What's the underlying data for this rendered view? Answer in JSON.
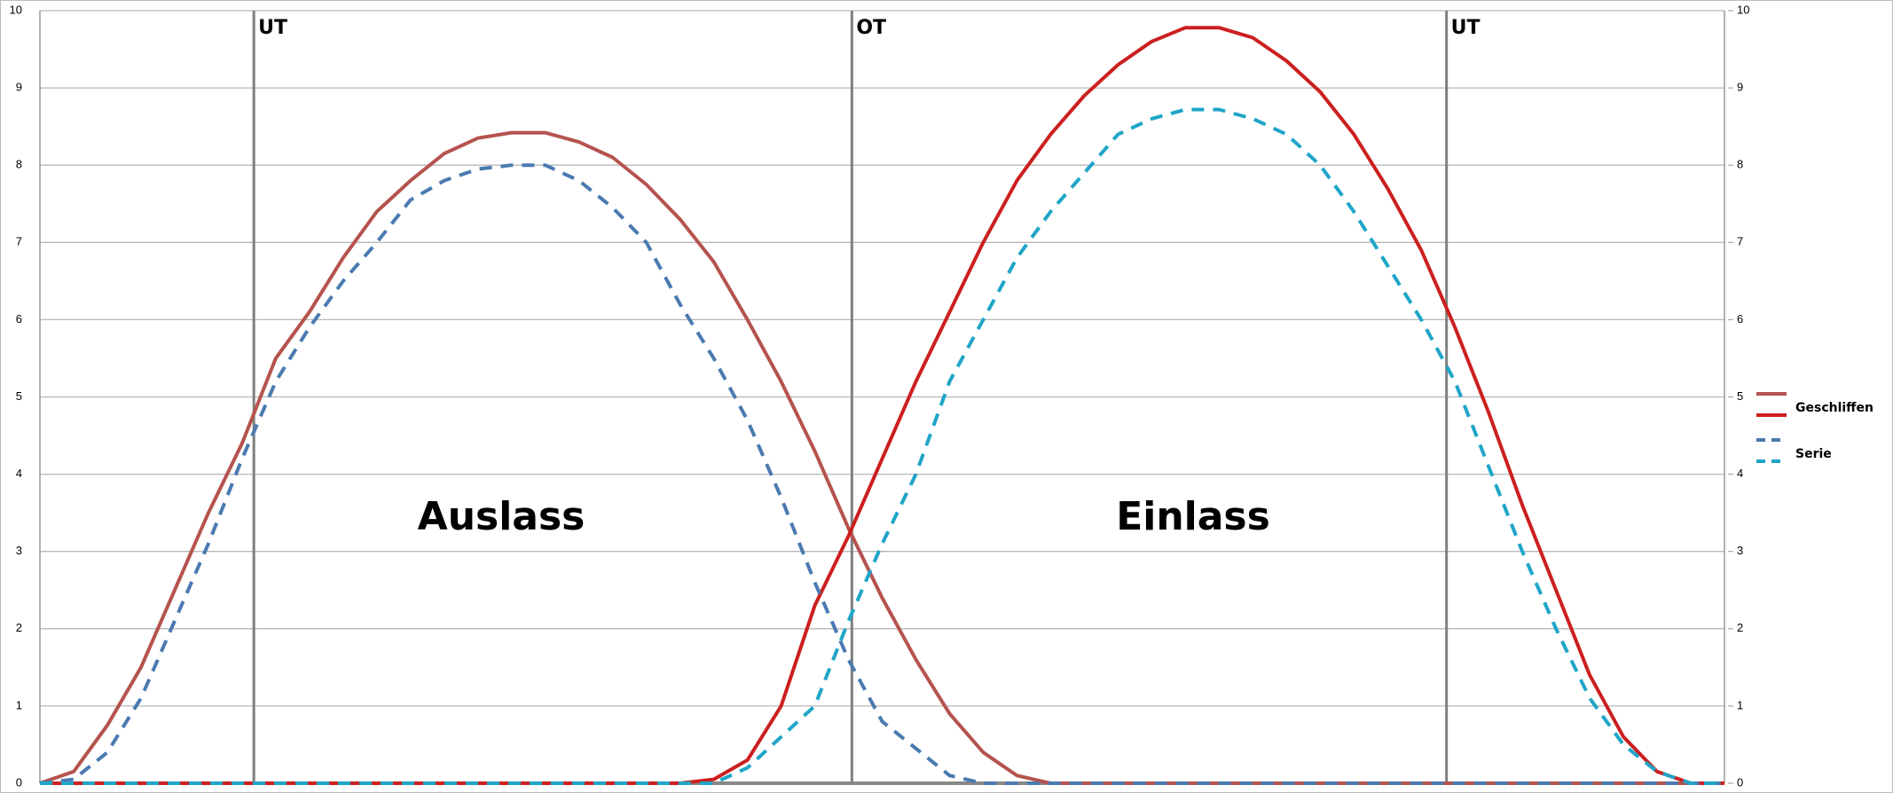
{
  "chart_data": {
    "type": "line",
    "xlim": [
      0,
      50
    ],
    "ylim": [
      0,
      10
    ],
    "yticks": [
      0,
      1,
      2,
      3,
      4,
      5,
      6,
      7,
      8,
      9,
      10
    ],
    "y2lim": [
      0,
      10
    ],
    "y2ticks": [
      0,
      1,
      2,
      3,
      4,
      5,
      6,
      7,
      8,
      9,
      10
    ],
    "grid": true,
    "markers": [
      {
        "text": "UT",
        "x": 6.35
      },
      {
        "text": "OT",
        "x": 24.1
      },
      {
        "text": "UT",
        "x": 41.75
      }
    ],
    "labels": [
      "Auslass",
      "Einlass"
    ],
    "series": [
      {
        "name": "Geschliffen",
        "dash": false,
        "lines": [
          {
            "color": "#b5534e",
            "values": [
              0,
              0.15,
              0.75,
              1.5,
              2.5,
              3.5,
              4.4,
              5.5,
              6.1,
              6.8,
              7.4,
              7.8,
              8.15,
              8.35,
              8.42,
              8.42,
              8.3,
              8.1,
              7.75,
              7.3,
              6.75,
              6.0,
              5.2,
              4.3,
              3.3,
              2.4,
              1.6,
              0.9,
              0.4,
              0.1,
              0,
              0,
              0,
              0,
              0,
              0,
              0,
              0,
              0,
              0,
              0,
              0,
              0,
              0,
              0,
              0,
              0,
              0,
              0,
              0,
              0
            ]
          },
          {
            "color": "#cc1f1f",
            "values": [
              0,
              0,
              0,
              0,
              0,
              0,
              0,
              0,
              0,
              0,
              0,
              0,
              0,
              0,
              0,
              0,
              0,
              0,
              0,
              0,
              0.05,
              0.3,
              1.0,
              2.3,
              3.2,
              4.2,
              5.2,
              6.1,
              7.0,
              7.8,
              8.4,
              8.9,
              9.3,
              9.6,
              9.78,
              9.78,
              9.65,
              9.35,
              8.95,
              8.4,
              7.7,
              6.9,
              5.9,
              4.8,
              3.6,
              2.5,
              1.4,
              0.6,
              0.15,
              0,
              0
            ]
          }
        ]
      },
      {
        "name": "Serie",
        "dash": true,
        "lines": [
          {
            "color": "#4a7ab0",
            "values": [
              0,
              0.05,
              0.4,
              1.1,
              2.1,
              3.1,
              4.2,
              5.2,
              5.9,
              6.5,
              7.0,
              7.55,
              7.8,
              7.95,
              8.0,
              8.0,
              7.8,
              7.45,
              7.0,
              6.2,
              5.5,
              4.7,
              3.7,
              2.6,
              1.6,
              0.8,
              0.45,
              0.1,
              0,
              0,
              0,
              0,
              0,
              0,
              0,
              0,
              0,
              0,
              0,
              0,
              0,
              0,
              0,
              0,
              0,
              0,
              0,
              0,
              0,
              0,
              0
            ]
          },
          {
            "color": "#1fa5c8",
            "values": [
              0,
              0,
              0,
              0,
              0,
              0,
              0,
              0,
              0,
              0,
              0,
              0,
              0,
              0,
              0,
              0,
              0,
              0,
              0,
              0,
              0,
              0.2,
              0.6,
              1.0,
              2.1,
              3.1,
              4.0,
              5.2,
              6.0,
              6.8,
              7.4,
              7.9,
              8.4,
              8.6,
              8.72,
              8.72,
              8.6,
              8.4,
              8.0,
              7.4,
              6.7,
              6.0,
              5.2,
              4.1,
              3.0,
              2.0,
              1.1,
              0.5,
              0.15,
              0,
              0
            ]
          }
        ]
      }
    ]
  }
}
